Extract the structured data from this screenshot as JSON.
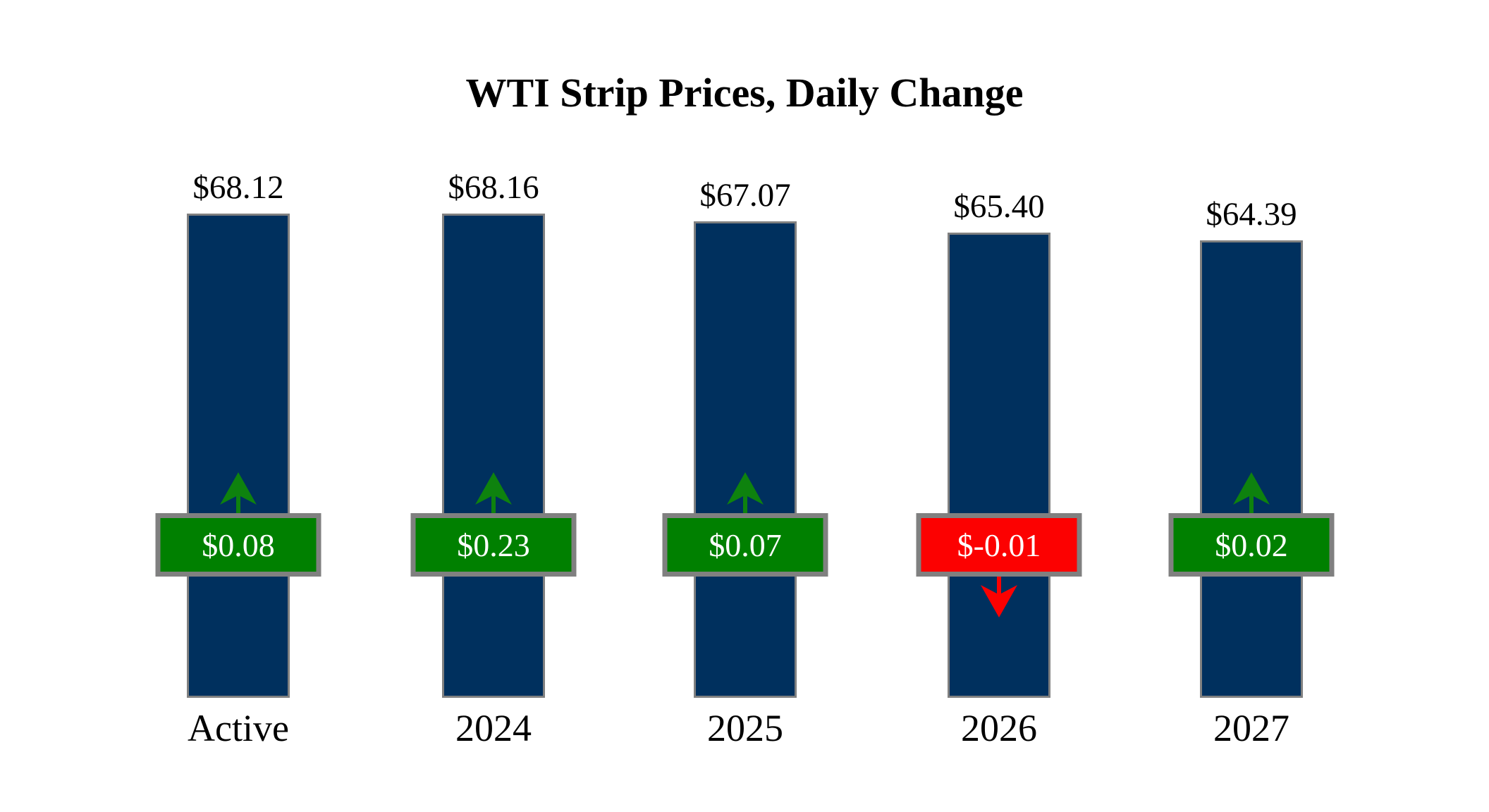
{
  "chart_data": {
    "type": "bar",
    "title": "WTI Strip Prices, Daily Change",
    "categories": [
      "Active",
      "2024",
      "2025",
      "2026",
      "2027"
    ],
    "values": [
      68.12,
      68.16,
      67.07,
      65.4,
      64.39
    ],
    "price_labels": [
      "$68.12",
      "$68.16",
      "$67.07",
      "$65.40",
      "$64.39"
    ],
    "changes": [
      0.08,
      0.23,
      0.07,
      -0.01,
      0.02
    ],
    "change_labels": [
      "$0.08",
      "$0.23",
      "$0.07",
      "$-0.01",
      "$0.02"
    ],
    "change_directions": [
      "up",
      "up",
      "up",
      "down",
      "up"
    ],
    "xlabel": "",
    "ylabel": "",
    "ylim": [
      0,
      70
    ],
    "grid": false,
    "legend": "none",
    "colors": {
      "bar_fill": "#00305E",
      "positive_badge": "#008000",
      "negative_badge": "#FC0101",
      "up_arrow": "#0E820E",
      "down_arrow": "#FC0101",
      "border_gray": "#808080",
      "badge_text": "#FFFFFF",
      "label_text": "#000000"
    }
  }
}
